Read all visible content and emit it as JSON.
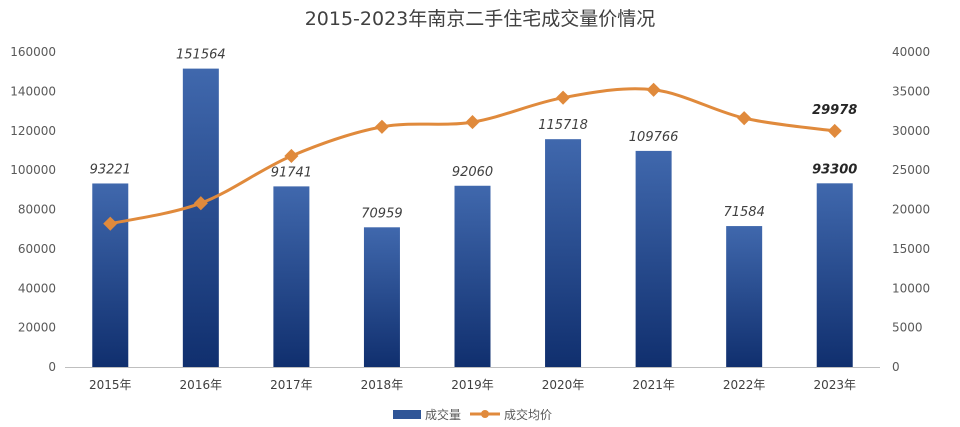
{
  "chart_data": {
    "type": "bar",
    "title": "2015-2023年南京二手住宅成交量价情况",
    "categories": [
      "2015年",
      "2016年",
      "2017年",
      "2018年",
      "2019年",
      "2020年",
      "2021年",
      "2022年",
      "2023年"
    ],
    "series": [
      {
        "name": "成交量",
        "type": "bar",
        "axis": "left",
        "color": "#2f5597",
        "values": [
          93221,
          151564,
          91741,
          70959,
          92060,
          115718,
          109766,
          71584,
          93300
        ],
        "labels": [
          "93221",
          "151564",
          "91741",
          "70959",
          "92060",
          "115718",
          "109766",
          "71584",
          "93300"
        ]
      },
      {
        "name": "成交均价",
        "type": "line",
        "axis": "right",
        "color": "#e08a3c",
        "values": [
          18200,
          20800,
          26800,
          30500,
          31100,
          34200,
          35200,
          31600,
          29978
        ],
        "labels": [
          "29978"
        ],
        "label_index": [
          8
        ]
      }
    ],
    "y_left": {
      "ylim": [
        0,
        160000
      ],
      "ticks": [
        "0",
        "20000",
        "40000",
        "60000",
        "80000",
        "100000",
        "120000",
        "140000",
        "160000"
      ]
    },
    "y_right": {
      "ylim": [
        0,
        40000
      ],
      "ticks": [
        "0",
        "5000",
        "10000",
        "15000",
        "20000",
        "25000",
        "30000",
        "35000",
        "40000"
      ]
    },
    "grid": false,
    "legend": "bottom"
  }
}
